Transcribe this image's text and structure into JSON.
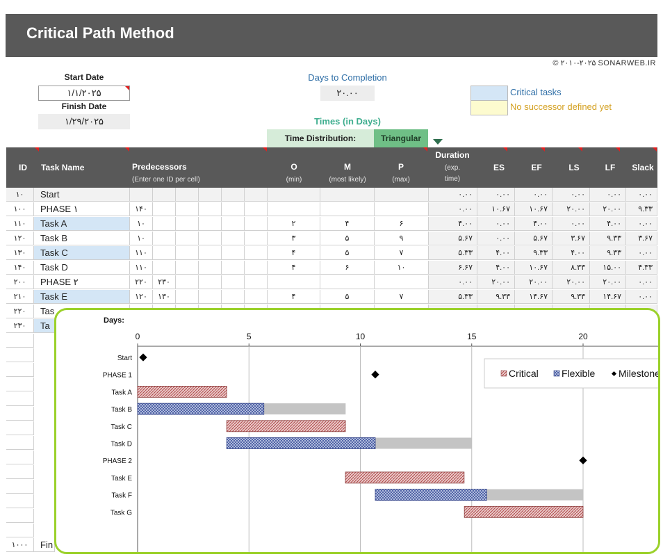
{
  "title": "Critical Path Method",
  "copyright": "© ۲۰۱۰-۲۰۲۵ SONARWEB.IR",
  "start_date_label": "Start Date",
  "start_date_value": "۱/۱/۲۰۲۵",
  "finish_date_label": "Finish Date",
  "finish_date_value": "۱/۲۹/۲۰۲۵",
  "days_to_completion_label": "Days to Completion",
  "days_to_completion_value": "۲۰.۰۰",
  "times_label": "Times (in Days)",
  "time_distribution_label": "Time Distribution:",
  "time_distribution_value": "Triangular",
  "legend_critical": "Critical tasks",
  "legend_no_successor": "No successor defined yet",
  "colors": {
    "header": "#595959",
    "critical": "#d4e6f6",
    "no_successor": "#fdfbcf",
    "chart_border": "#9bd12b"
  },
  "columns": {
    "id": "ID",
    "task": "Task Name",
    "pred": "Predecessors",
    "pred_sub": "(Enter one ID per cell)",
    "o": "O",
    "o_sub": "(min)",
    "m": "M",
    "m_sub": "(most likely)",
    "p": "P",
    "p_sub": "(max)",
    "dur": "Duration",
    "dur_sub1": "(exp.",
    "dur_sub2": "time)",
    "es": "ES",
    "ef": "EF",
    "ls": "LS",
    "lf": "LF",
    "slack": "Slack"
  },
  "rows": [
    {
      "id": "۱۰",
      "name": "Start",
      "crit": false,
      "p1": "",
      "p2": "",
      "o": "",
      "m": "",
      "p": "",
      "dur": "۰.۰۰",
      "es": "۰.۰۰",
      "ef": "۰.۰۰",
      "ls": "۰.۰۰",
      "lf": "۰.۰۰",
      "slack": "۰.۰۰"
    },
    {
      "id": "۱۰۰",
      "name": "PHASE ۱",
      "crit": false,
      "p1": "۱۴۰",
      "p2": "",
      "o": "",
      "m": "",
      "p": "",
      "dur": "۰.۰۰",
      "es": "۱۰.۶۷",
      "ef": "۱۰.۶۷",
      "ls": "۲۰.۰۰",
      "lf": "۲۰.۰۰",
      "slack": "۹.۳۳"
    },
    {
      "id": "۱۱۰",
      "name": "Task A",
      "crit": true,
      "p1": "۱۰",
      "p2": "",
      "o": "۲",
      "m": "۴",
      "p": "۶",
      "dur": "۴.۰۰",
      "es": "۰.۰۰",
      "ef": "۴.۰۰",
      "ls": "۰.۰۰",
      "lf": "۴.۰۰",
      "slack": "۰.۰۰"
    },
    {
      "id": "۱۲۰",
      "name": "Task B",
      "crit": false,
      "p1": "۱۰",
      "p2": "",
      "o": "۳",
      "m": "۵",
      "p": "۹",
      "dur": "۵.۶۷",
      "es": "۰.۰۰",
      "ef": "۵.۶۷",
      "ls": "۳.۶۷",
      "lf": "۹.۳۳",
      "slack": "۳.۶۷"
    },
    {
      "id": "۱۳۰",
      "name": "Task C",
      "crit": true,
      "p1": "۱۱۰",
      "p2": "",
      "o": "۴",
      "m": "۵",
      "p": "۷",
      "dur": "۵.۳۳",
      "es": "۴.۰۰",
      "ef": "۹.۳۳",
      "ls": "۴.۰۰",
      "lf": "۹.۳۳",
      "slack": "۰.۰۰"
    },
    {
      "id": "۱۴۰",
      "name": "Task D",
      "crit": false,
      "p1": "۱۱۰",
      "p2": "",
      "o": "۴",
      "m": "۶",
      "p": "۱۰",
      "dur": "۶.۶۷",
      "es": "۴.۰۰",
      "ef": "۱۰.۶۷",
      "ls": "۸.۳۳",
      "lf": "۱۵.۰۰",
      "slack": "۴.۳۳"
    },
    {
      "id": "۲۰۰",
      "name": "PHASE ۲",
      "crit": false,
      "p1": "۲۲۰",
      "p2": "۲۳۰",
      "o": "",
      "m": "",
      "p": "",
      "dur": "۰.۰۰",
      "es": "۲۰.۰۰",
      "ef": "۲۰.۰۰",
      "ls": "۲۰.۰۰",
      "lf": "۲۰.۰۰",
      "slack": "۰.۰۰"
    },
    {
      "id": "۲۱۰",
      "name": "Task E",
      "crit": true,
      "p1": "۱۲۰",
      "p2": "۱۳۰",
      "o": "۴",
      "m": "۵",
      "p": "۷",
      "dur": "۵.۳۳",
      "es": "۹.۳۳",
      "ef": "۱۴.۶۷",
      "ls": "۹.۳۳",
      "lf": "۱۴.۶۷",
      "slack": "۰.۰۰"
    },
    {
      "id": "۲۲۰",
      "name": "Tas",
      "crit": false,
      "p1": "",
      "p2": "",
      "o": "",
      "m": "",
      "p": "",
      "dur": "",
      "es": "",
      "ef": "",
      "ls": "",
      "lf": "",
      "slack": ""
    },
    {
      "id": "۲۳۰",
      "name": "Ta",
      "crit": true,
      "p1": "",
      "p2": "",
      "o": "",
      "m": "",
      "p": "",
      "dur": "",
      "es": "",
      "ef": "",
      "ls": "",
      "lf": "",
      "slack": ""
    }
  ],
  "last_row": {
    "id": "۱۰۰۰",
    "name": "Fin"
  },
  "chart_data": {
    "type": "bar",
    "orientation": "horizontal-gantt",
    "title": "Days:",
    "x_ticks": [
      0,
      5,
      10,
      15,
      20
    ],
    "xlim": [
      0,
      22.5
    ],
    "grid": true,
    "legend_position": "top-right",
    "legend": [
      "Critical",
      "Flexible",
      "Milestone"
    ],
    "categories": [
      "Start",
      "PHASE 1",
      "Task A",
      "Task B",
      "Task C",
      "Task D",
      "PHASE 2",
      "Task E",
      "Task F",
      "Task G"
    ],
    "tasks": [
      {
        "name": "Start",
        "type": "milestone",
        "at": 0.25
      },
      {
        "name": "PHASE 1",
        "type": "milestone",
        "at": 10.67
      },
      {
        "name": "Task A",
        "type": "critical",
        "start": 0,
        "duration": 4.0
      },
      {
        "name": "Task B",
        "type": "flexible",
        "start": 0,
        "duration": 5.67,
        "slack": 3.67
      },
      {
        "name": "Task C",
        "type": "critical",
        "start": 4.0,
        "duration": 5.33
      },
      {
        "name": "Task D",
        "type": "flexible",
        "start": 4.0,
        "duration": 6.67,
        "slack": 4.33
      },
      {
        "name": "PHASE 2",
        "type": "milestone",
        "at": 20.0
      },
      {
        "name": "Task E",
        "type": "critical",
        "start": 9.33,
        "duration": 5.33
      },
      {
        "name": "Task F",
        "type": "flexible",
        "start": 10.67,
        "duration": 5.0,
        "slack": 4.33
      },
      {
        "name": "Task G",
        "type": "critical",
        "start": 14.67,
        "duration": 5.33
      }
    ]
  }
}
